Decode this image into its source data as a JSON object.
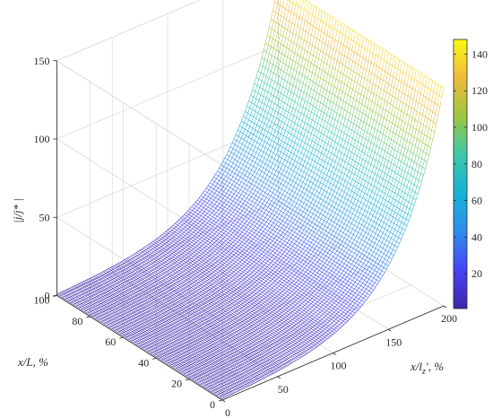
{
  "chart_data": {
    "type": "surface",
    "title": "",
    "x_axis": {
      "label_main": "x/l",
      "label_sub": "z",
      "label_unit": "′, %",
      "ticks": [
        0,
        50,
        100,
        150,
        200
      ],
      "range": [
        0,
        200
      ]
    },
    "y_axis": {
      "label": "x/L, %",
      "ticks": [
        0,
        20,
        40,
        60,
        80,
        100
      ],
      "range": [
        0,
        100
      ]
    },
    "z_axis": {
      "label": "|j/j* |",
      "ticks": [
        0,
        50,
        100,
        150
      ],
      "range": [
        0,
        150
      ]
    },
    "colorbar": {
      "ticks": [
        20,
        40,
        60,
        80,
        100,
        120,
        140
      ],
      "range": [
        1,
        148
      ],
      "colormap": "parula",
      "colors": [
        "#3e26a8",
        "#4743f8",
        "#2f8ceb",
        "#17b2d6",
        "#3dc7ab",
        "#9cc73e",
        "#f0ba3c",
        "#f9fb15"
      ]
    },
    "surface": {
      "description_formula": "z = exp(x / 40.5) independent of y",
      "sample_x": [
        0,
        50,
        100,
        150,
        200
      ],
      "sample_z": [
        1.0,
        3.4,
        11.8,
        40.7,
        139.7
      ],
      "y_range": [
        0,
        100
      ]
    },
    "grid": true,
    "legend": "none"
  }
}
